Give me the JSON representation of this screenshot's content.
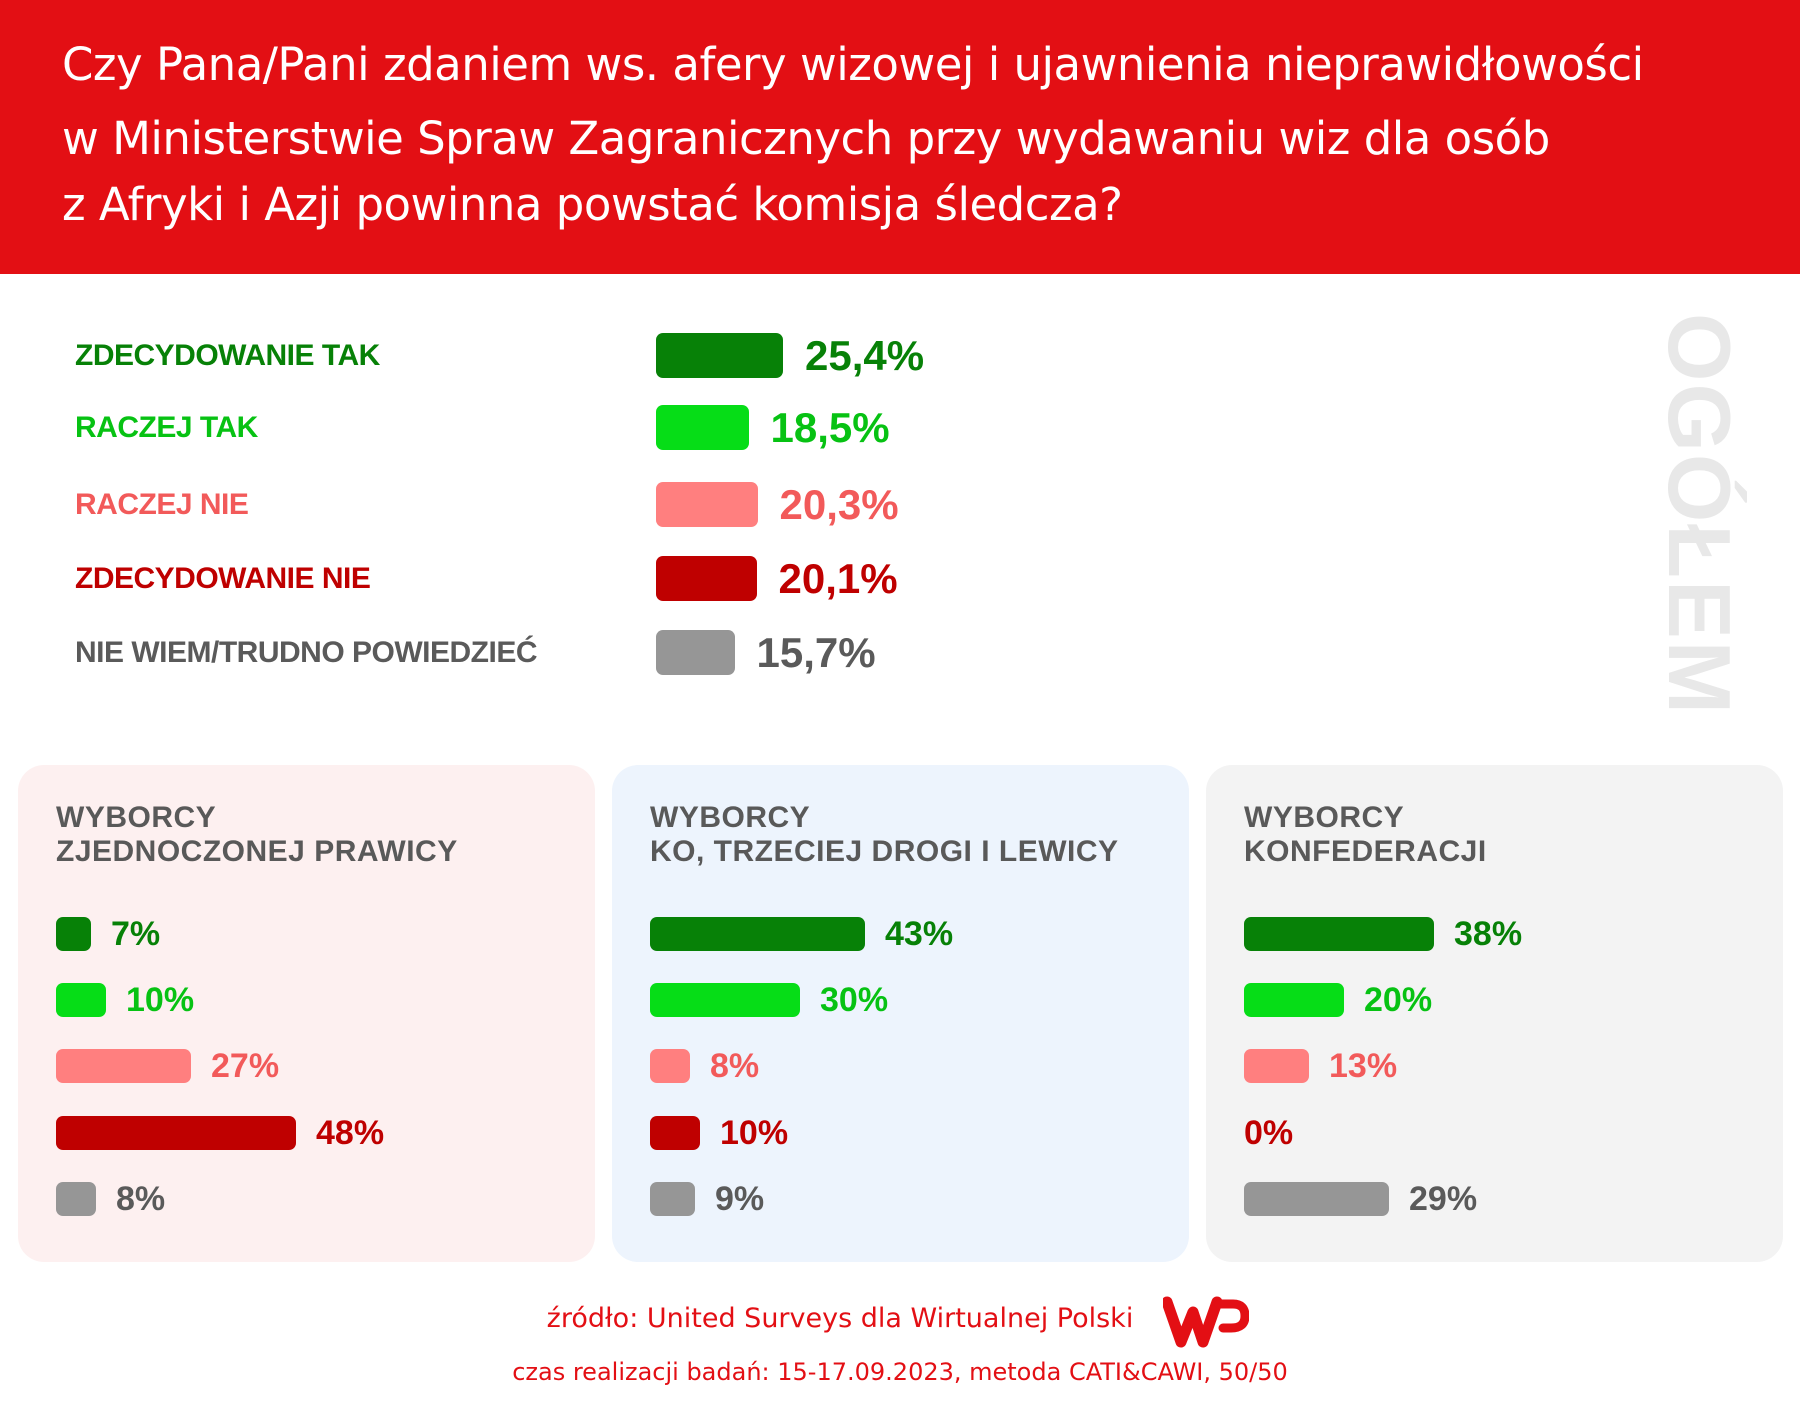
{
  "header": {
    "title_lines": [
      "Czy Pana/Pani zdaniem ws. afery wizowej i ujawnienia nieprawidłowości",
      "w Ministerstwie Spraw Zagranicznych przy wydawaniu wiz dla osób",
      "z Afryki i Azji powinna powstać komisja śledcza?"
    ]
  },
  "colors": {
    "zdecydowanie_tak": "#078107",
    "raczej_tak": "#06dd17",
    "raczej_nie": "#ff7f7f",
    "zdecydowanie_nie": "#bf0000",
    "nie_wiem": "#969696",
    "header": "#e30f14"
  },
  "chart_data": [
    {
      "type": "bar",
      "title": "OGÓŁEM",
      "categories": [
        "ZDECYDOWANIE TAK",
        "RACZEJ TAK",
        "RACZEJ NIE",
        "ZDECYDOWANIE NIE",
        "NIE WIEM/TRUDNO POWIEDZIEĆ"
      ],
      "values": [
        25.4,
        18.5,
        20.3,
        20.1,
        15.7
      ],
      "labels": [
        "25,4%",
        "18,5%",
        "20,3%",
        "20,1%",
        "15,7%"
      ]
    },
    {
      "type": "bar",
      "title": [
        "WYBORCY",
        "ZJEDNOCZONEJ PRAWICY"
      ],
      "categories": [
        "ZDECYDOWANIE TAK",
        "RACZEJ TAK",
        "RACZEJ NIE",
        "ZDECYDOWANIE NIE",
        "NIE WIEM/TRUDNO POWIEDZIEĆ"
      ],
      "values": [
        7,
        10,
        27,
        48,
        8
      ],
      "labels": [
        "7%",
        "10%",
        "27%",
        "48%",
        "8%"
      ]
    },
    {
      "type": "bar",
      "title": [
        "WYBORCY",
        "KO, TRZECIEJ DROGI I LEWICY"
      ],
      "categories": [
        "ZDECYDOWANIE TAK",
        "RACZEJ TAK",
        "RACZEJ NIE",
        "ZDECYDOWANIE NIE",
        "NIE WIEM/TRUDNO POWIEDZIEĆ"
      ],
      "values": [
        43,
        30,
        8,
        10,
        9
      ],
      "labels": [
        "43%",
        "30%",
        "8%",
        "10%",
        "9%"
      ]
    },
    {
      "type": "bar",
      "title": [
        "WYBORCY",
        "KONFEDERACJI"
      ],
      "categories": [
        "ZDECYDOWANIE TAK",
        "RACZEJ TAK",
        "RACZEJ NIE",
        "ZDECYDOWANIE NIE",
        "NIE WIEM/TRUDNO POWIEDZIEĆ"
      ],
      "values": [
        38,
        20,
        13,
        0,
        29
      ],
      "labels": [
        "38%",
        "20%",
        "13%",
        "0%",
        "29%"
      ]
    }
  ],
  "footer": {
    "source": "źródło: United Surveys dla Wirtualnej Polski",
    "method": "czas realizacji badań: 15-17.09.2023, metoda CATI&CAWI, 50/50",
    "logo": "WP"
  }
}
